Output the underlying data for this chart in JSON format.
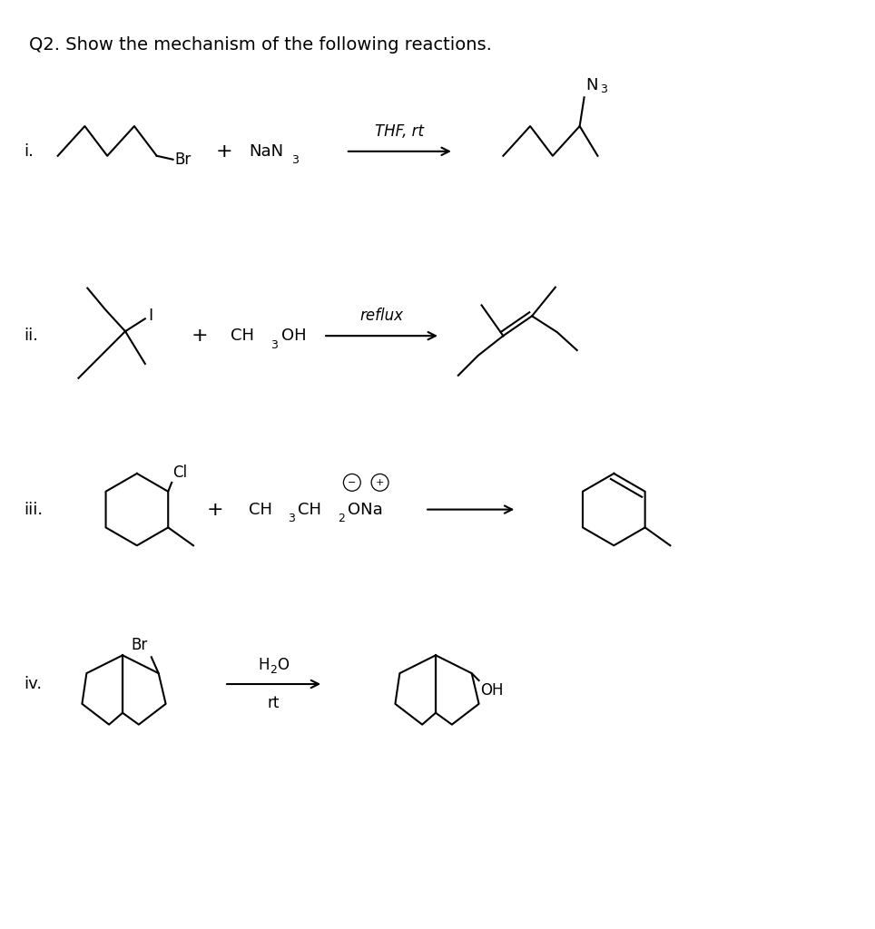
{
  "title": "Q2. Show the mechanism of the following reactions.",
  "background_color": "#ffffff",
  "text_color": "#000000",
  "label_i": "i.",
  "label_ii": "ii.",
  "label_iii": "iii.",
  "label_iv": "iv.",
  "arrow_i": "THF, rt",
  "arrow_ii": "reflux",
  "nan3": "NaN",
  "nan3_sub": "3",
  "n3_label": "N",
  "n3_sub": "3",
  "ch3oh": "CH",
  "ch3_sub": "3",
  "oh": "OH",
  "ch3ch2ona": "CH",
  "ch3_s": "3",
  "ch2": "CH",
  "ch2_s": "2",
  "ona": "ONa",
  "h2o_h": "H",
  "h2o_sub": "2",
  "h2o_o": "O",
  "rt": "rt",
  "br_label": "Br",
  "cl_label": "Cl",
  "i_label": "I",
  "oh_label": "OH",
  "plus": "+",
  "fs": 13,
  "lw": 1.5
}
